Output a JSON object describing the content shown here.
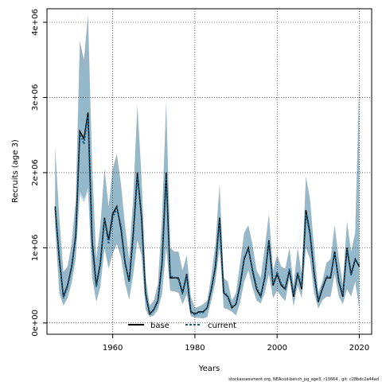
{
  "chart_data": {
    "type": "line",
    "xlabel": "Years",
    "ylabel": "Recruits (age 3)",
    "xlim": [
      1944,
      2023
    ],
    "ylim": [
      -150000,
      4180000
    ],
    "x_ticks": [
      1960,
      1980,
      2000,
      2020
    ],
    "x_tick_labels": [
      "1960",
      "1980",
      "2000",
      "2020"
    ],
    "y_ticks": [
      0,
      1000000,
      2000000,
      3000000,
      4000000
    ],
    "y_tick_labels": [
      "0e+00",
      "1e+06",
      "2e+06",
      "3e+06",
      "4e+06"
    ],
    "grid": true,
    "legend_position": "bottom-left",
    "x": [
      1946,
      1947,
      1948,
      1949,
      1950,
      1951,
      1952,
      1953,
      1954,
      1955,
      1956,
      1957,
      1958,
      1959,
      1960,
      1961,
      1962,
      1963,
      1964,
      1965,
      1966,
      1967,
      1968,
      1969,
      1970,
      1971,
      1972,
      1973,
      1974,
      1975,
      1976,
      1977,
      1978,
      1979,
      1980,
      1981,
      1982,
      1983,
      1984,
      1985,
      1986,
      1987,
      1988,
      1989,
      1990,
      1991,
      1992,
      1993,
      1994,
      1995,
      1996,
      1997,
      1998,
      1999,
      2000,
      2001,
      2002,
      2003,
      2004,
      2005,
      2006,
      2007,
      2008,
      2009,
      2010,
      2011,
      2012,
      2013,
      2014,
      2015,
      2016,
      2017,
      2018,
      2019,
      2020
    ],
    "series": [
      {
        "name": "base",
        "color": "#000000",
        "style": "solid",
        "values": [
          1550000,
          850000,
          350000,
          500000,
          750000,
          1150000,
          2550000,
          2450000,
          2800000,
          1100000,
          500000,
          800000,
          1400000,
          1100000,
          1450000,
          1550000,
          1250000,
          800000,
          550000,
          1200000,
          2000000,
          1400000,
          400000,
          120000,
          180000,
          300000,
          800000,
          2000000,
          600000,
          600000,
          600000,
          400000,
          650000,
          150000,
          120000,
          150000,
          150000,
          200000,
          450000,
          750000,
          1400000,
          400000,
          350000,
          200000,
          250000,
          500000,
          850000,
          1000000,
          700000,
          450000,
          350000,
          600000,
          1100000,
          500000,
          650000,
          500000,
          450000,
          700000,
          350000,
          650000,
          450000,
          1500000,
          1200000,
          650000,
          280000,
          450000,
          600000,
          600000,
          950000,
          550000,
          350000,
          1000000,
          650000,
          850000,
          750000
        ],
        "lower": [
          1300000,
          400000,
          230000,
          330000,
          530000,
          860000,
          1750000,
          1650000,
          1800000,
          600000,
          280000,
          480000,
          1000000,
          720000,
          920000,
          1050000,
          880000,
          530000,
          310000,
          650000,
          1100000,
          900000,
          180000,
          80000,
          100000,
          180000,
          380000,
          1000000,
          430000,
          420000,
          400000,
          250000,
          380000,
          90000,
          70000,
          70000,
          60000,
          80000,
          300000,
          550000,
          1000000,
          200000,
          180000,
          150000,
          100000,
          270000,
          550000,
          700000,
          470000,
          300000,
          260000,
          400000,
          650000,
          330000,
          430000,
          350000,
          290000,
          600000,
          220000,
          500000,
          330000,
          1000000,
          850000,
          400000,
          190000,
          300000,
          350000,
          350000,
          650000,
          350000,
          250000,
          450000,
          350000,
          550000,
          180000
        ],
        "upper": [
          2350000,
          1400000,
          680000,
          750000,
          1050000,
          1650000,
          3750000,
          3500000,
          4100000,
          2100000,
          850000,
          1300000,
          2050000,
          1550000,
          2050000,
          2250000,
          1850000,
          1300000,
          850000,
          1700000,
          2900000,
          1950000,
          620000,
          230000,
          300000,
          520000,
          1400000,
          2950000,
          1000000,
          950000,
          950000,
          700000,
          900000,
          350000,
          200000,
          220000,
          250000,
          300000,
          630000,
          1050000,
          1850000,
          600000,
          550000,
          300000,
          400000,
          800000,
          1200000,
          1300000,
          1050000,
          700000,
          600000,
          1000000,
          1450000,
          700000,
          900000,
          750000,
          720000,
          1000000,
          500000,
          1000000,
          650000,
          1950000,
          1650000,
          1000000,
          400000,
          550000,
          800000,
          850000,
          1300000,
          850000,
          520000,
          1350000,
          950000,
          1200000,
          3250000
        ]
      },
      {
        "name": "current",
        "color": "#1a5e82",
        "style": "dashed",
        "values": [
          1520000,
          880000,
          330000,
          480000,
          730000,
          1180000,
          2520000,
          2380000,
          2750000,
          1000000,
          480000,
          780000,
          1380000,
          1050000,
          1400000,
          1520000,
          1300000,
          820000,
          540000,
          1150000,
          1950000,
          1450000,
          380000,
          110000,
          170000,
          280000,
          780000,
          1950000,
          620000,
          610000,
          580000,
          380000,
          630000,
          140000,
          110000,
          140000,
          140000,
          210000,
          440000,
          740000,
          1380000,
          420000,
          360000,
          210000,
          260000,
          520000,
          870000,
          980000,
          720000,
          480000,
          360000,
          620000,
          1080000,
          520000,
          680000,
          520000,
          470000,
          720000,
          380000,
          680000,
          480000,
          1450000,
          1180000,
          680000,
          300000,
          470000,
          620000,
          620000,
          930000,
          570000,
          380000,
          980000,
          630000,
          830000,
          780000
        ],
        "lower": [
          1250000,
          420000,
          250000,
          350000,
          550000,
          880000,
          1700000,
          1600000,
          1750000,
          620000,
          300000,
          500000,
          1020000,
          740000,
          950000,
          1070000,
          900000,
          550000,
          330000,
          670000,
          1150000,
          950000,
          200000,
          90000,
          110000,
          190000,
          400000,
          1050000,
          450000,
          440000,
          420000,
          270000,
          400000,
          100000,
          80000,
          80000,
          70000,
          100000,
          320000,
          570000,
          1050000,
          220000,
          200000,
          160000,
          120000,
          290000,
          570000,
          720000,
          490000,
          320000,
          280000,
          420000,
          680000,
          350000,
          450000,
          370000,
          310000,
          620000,
          240000,
          520000,
          350000,
          1050000,
          880000,
          420000,
          200000,
          320000,
          370000,
          370000,
          680000,
          370000,
          270000,
          470000,
          370000,
          570000,
          200000
        ],
        "upper": [
          2200000,
          1350000,
          650000,
          720000,
          1000000,
          1600000,
          3550000,
          3350000,
          3900000,
          2000000,
          820000,
          1250000,
          1950000,
          1500000,
          1950000,
          2150000,
          1800000,
          1250000,
          820000,
          1650000,
          2800000,
          1900000,
          600000,
          220000,
          290000,
          500000,
          1350000,
          2850000,
          980000,
          920000,
          920000,
          680000,
          880000,
          340000,
          190000,
          210000,
          240000,
          290000,
          610000,
          1020000,
          1800000,
          580000,
          530000,
          290000,
          390000,
          780000,
          1170000,
          1270000,
          1020000,
          680000,
          580000,
          980000,
          1420000,
          680000,
          880000,
          730000,
          700000,
          980000,
          490000,
          980000,
          630000,
          1900000,
          1600000,
          980000,
          390000,
          540000,
          780000,
          830000,
          1270000,
          830000,
          510000,
          1320000,
          930000,
          1180000,
          3150000
        ]
      }
    ]
  },
  "footer": "stockassessment.org, NEAcod-bench_pg_age3, r13664 , git: c28bdc2a44ad"
}
